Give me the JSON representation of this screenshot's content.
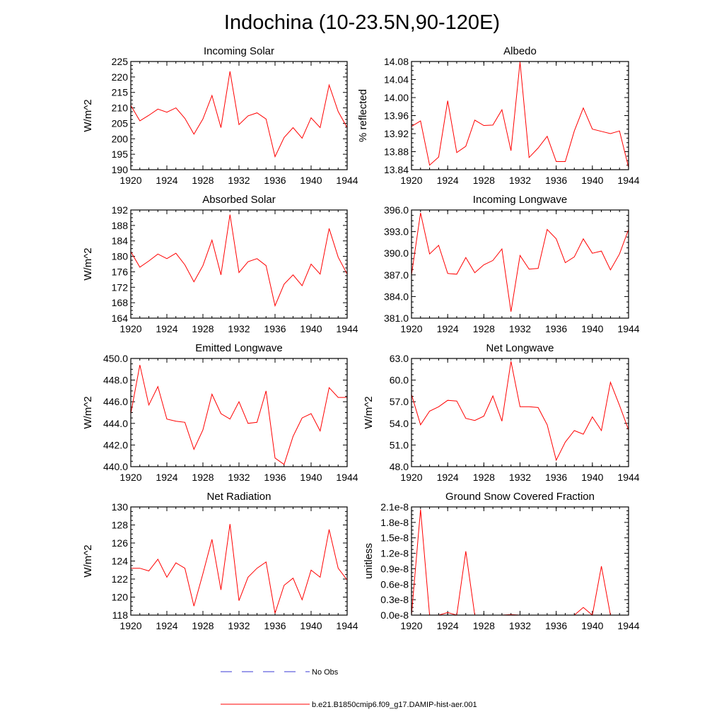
{
  "figure": {
    "title": "Indochina (10-23.5N,90-120E)",
    "line_color": "#ff0000",
    "obs_color": "#3a3ad6"
  },
  "legend": {
    "obs_label": "No Obs",
    "model_label": "b.e21.B1850cmip6.f09_g17.DAMIP-hist-aer.001"
  },
  "chart_data": [
    {
      "type": "line",
      "title": "Incoming Solar",
      "ylabel": "W/m^2",
      "ylabel_side": "left",
      "xlim": [
        1920,
        1944
      ],
      "ylim": [
        190,
        225
      ],
      "xticks": [
        "1920",
        "1924",
        "1928",
        "1932",
        "1936",
        "1940",
        "1944"
      ],
      "yticks": [
        "190",
        "195",
        "200",
        "205",
        "210",
        "215",
        "220",
        "225"
      ],
      "x": [
        1920,
        1921,
        1922,
        1923,
        1924,
        1925,
        1926,
        1927,
        1928,
        1929,
        1930,
        1931,
        1932,
        1933,
        1934,
        1935,
        1936,
        1937,
        1938,
        1939,
        1940,
        1941,
        1942,
        1943,
        1944
      ],
      "values": [
        210.8,
        205.8,
        207.6,
        209.6,
        208.6,
        210.0,
        206.6,
        201.5,
        206.4,
        214.0,
        203.6,
        221.8,
        204.6,
        207.4,
        208.4,
        206.4,
        194.2,
        200.4,
        203.6,
        200.2,
        206.8,
        203.6,
        217.4,
        208.8,
        203.6
      ]
    },
    {
      "type": "line",
      "title": "Albedo",
      "ylabel": "% reflected",
      "ylabel_side": "right",
      "xlim": [
        1920,
        1944
      ],
      "ylim": [
        13.84,
        14.08
      ],
      "xticks": [
        "1920",
        "1924",
        "1928",
        "1932",
        "1936",
        "1940",
        "1944"
      ],
      "yticks": [
        "13.84",
        "13.88",
        "13.92",
        "13.96",
        "14.00",
        "14.04",
        "14.08"
      ],
      "x": [
        1920,
        1921,
        1922,
        1923,
        1924,
        1925,
        1926,
        1927,
        1928,
        1929,
        1930,
        1931,
        1932,
        1933,
        1934,
        1935,
        1936,
        1937,
        1938,
        1939,
        1940,
        1941,
        1942,
        1943,
        1944
      ],
      "values": [
        13.936,
        13.948,
        13.85,
        13.868,
        13.993,
        13.878,
        13.892,
        13.95,
        13.938,
        13.939,
        13.973,
        13.882,
        14.079,
        13.867,
        13.888,
        13.914,
        13.858,
        13.858,
        13.926,
        13.977,
        13.93,
        13.925,
        13.92,
        13.926,
        13.845
      ]
    },
    {
      "type": "line",
      "title": "Absorbed Solar",
      "ylabel": "W/m^2",
      "ylabel_side": "left",
      "xlim": [
        1920,
        1944
      ],
      "ylim": [
        164,
        192
      ],
      "xticks": [
        "1920",
        "1924",
        "1928",
        "1932",
        "1936",
        "1940",
        "1944"
      ],
      "yticks": [
        "164",
        "168",
        "172",
        "176",
        "180",
        "184",
        "188",
        "192"
      ],
      "x": [
        1920,
        1921,
        1922,
        1923,
        1924,
        1925,
        1926,
        1927,
        1928,
        1929,
        1930,
        1931,
        1932,
        1933,
        1934,
        1935,
        1936,
        1937,
        1938,
        1939,
        1940,
        1941,
        1942,
        1943,
        1944
      ],
      "values": [
        181.2,
        177.2,
        178.8,
        180.6,
        179.4,
        180.8,
        177.8,
        173.4,
        177.6,
        184.2,
        175.2,
        190.8,
        175.8,
        178.6,
        179.4,
        177.6,
        167.2,
        172.8,
        175.2,
        172.4,
        178.0,
        175.4,
        187.2,
        179.8,
        175.4
      ]
    },
    {
      "type": "line",
      "title": "Incoming Longwave",
      "ylabel": "",
      "ylabel_side": "left",
      "xlim": [
        1920,
        1944
      ],
      "ylim": [
        381.0,
        396.0
      ],
      "xticks": [
        "1920",
        "1924",
        "1928",
        "1932",
        "1936",
        "1940",
        "1944"
      ],
      "yticks": [
        "381.0",
        "384.0",
        "387.0",
        "390.0",
        "393.0",
        "396.0"
      ],
      "x": [
        1920,
        1921,
        1922,
        1923,
        1924,
        1925,
        1926,
        1927,
        1928,
        1929,
        1930,
        1931,
        1932,
        1933,
        1934,
        1935,
        1936,
        1937,
        1938,
        1939,
        1940,
        1941,
        1942,
        1943,
        1944
      ],
      "values": [
        387.0,
        395.6,
        389.9,
        391.1,
        387.2,
        387.1,
        389.4,
        387.3,
        388.4,
        389.0,
        390.6,
        381.9,
        389.7,
        387.8,
        387.9,
        393.3,
        392.0,
        388.7,
        389.5,
        392.0,
        390.0,
        390.3,
        387.7,
        389.9,
        393.3
      ]
    },
    {
      "type": "line",
      "title": "Emitted Longwave",
      "ylabel": "W/m^2",
      "ylabel_side": "left",
      "xlim": [
        1920,
        1944
      ],
      "ylim": [
        440.0,
        450.0
      ],
      "xticks": [
        "1920",
        "1924",
        "1928",
        "1932",
        "1936",
        "1940",
        "1944"
      ],
      "yticks": [
        "440.0",
        "442.0",
        "444.0",
        "446.0",
        "448.0",
        "450.0"
      ],
      "x": [
        1920,
        1921,
        1922,
        1923,
        1924,
        1925,
        1926,
        1927,
        1928,
        1929,
        1930,
        1931,
        1932,
        1933,
        1934,
        1935,
        1936,
        1937,
        1938,
        1939,
        1940,
        1941,
        1942,
        1943,
        1944
      ],
      "values": [
        444.9,
        449.4,
        445.7,
        447.4,
        444.4,
        444.2,
        444.1,
        441.6,
        443.4,
        446.7,
        444.9,
        444.4,
        446.0,
        444.0,
        444.1,
        447.0,
        440.8,
        440.2,
        442.8,
        444.5,
        444.9,
        443.3,
        447.3,
        446.4,
        446.4
      ]
    },
    {
      "type": "line",
      "title": "Net Longwave",
      "ylabel": "W/m^2",
      "ylabel_side": "left",
      "xlim": [
        1920,
        1944
      ],
      "ylim": [
        48.0,
        63.0
      ],
      "xticks": [
        "1920",
        "1924",
        "1928",
        "1932",
        "1936",
        "1940",
        "1944"
      ],
      "yticks": [
        "48.0",
        "51.0",
        "54.0",
        "57.0",
        "60.0",
        "63.0"
      ],
      "x": [
        1920,
        1921,
        1922,
        1923,
        1924,
        1925,
        1926,
        1927,
        1928,
        1929,
        1930,
        1931,
        1932,
        1933,
        1934,
        1935,
        1936,
        1937,
        1938,
        1939,
        1940,
        1941,
        1942,
        1943,
        1944
      ],
      "values": [
        58.0,
        53.8,
        55.7,
        56.3,
        57.2,
        57.1,
        54.7,
        54.4,
        55.0,
        57.8,
        54.3,
        62.6,
        56.3,
        56.3,
        56.2,
        53.8,
        48.9,
        51.4,
        53.0,
        52.5,
        54.9,
        53.0,
        59.7,
        56.5,
        53.1
      ]
    },
    {
      "type": "line",
      "title": "Net Radiation",
      "ylabel": "W/m^2",
      "ylabel_side": "left",
      "xlim": [
        1920,
        1944
      ],
      "ylim": [
        118,
        130
      ],
      "xticks": [
        "1920",
        "1924",
        "1928",
        "1932",
        "1936",
        "1940",
        "1944"
      ],
      "yticks": [
        "118",
        "120",
        "122",
        "124",
        "126",
        "128",
        "130"
      ],
      "x": [
        1920,
        1921,
        1922,
        1923,
        1924,
        1925,
        1926,
        1927,
        1928,
        1929,
        1930,
        1931,
        1932,
        1933,
        1934,
        1935,
        1936,
        1937,
        1938,
        1939,
        1940,
        1941,
        1942,
        1943,
        1944
      ],
      "values": [
        123.2,
        123.2,
        122.9,
        124.2,
        122.2,
        123.8,
        123.2,
        119.0,
        122.6,
        126.4,
        120.8,
        128.1,
        119.6,
        122.2,
        123.2,
        123.9,
        118.2,
        121.3,
        122.1,
        119.7,
        123.0,
        122.2,
        127.5,
        123.2,
        121.9
      ]
    },
    {
      "type": "line",
      "title": "Ground Snow Covered Fraction",
      "ylabel": "unitless",
      "ylabel_side": "left",
      "xlim": [
        1920,
        1944
      ],
      "ylim": [
        0.0,
        2.1e-08
      ],
      "xticks": [
        "1920",
        "1924",
        "1928",
        "1932",
        "1936",
        "1940",
        "1944"
      ],
      "yticks": [
        "0.0e-8",
        "0.3e-8",
        "0.6e-8",
        "0.9e-8",
        "1.2e-8",
        "1.5e-8",
        "1.8e-8",
        "2.1e-8"
      ],
      "x": [
        1920,
        1921,
        1922,
        1923,
        1924,
        1925,
        1926,
        1927,
        1928,
        1929,
        1930,
        1931,
        1932,
        1933,
        1934,
        1935,
        1936,
        1937,
        1938,
        1939,
        1940,
        1941,
        1942,
        1943,
        1944
      ],
      "values": [
        0.0,
        2.05e-08,
        0.0,
        0.0,
        5e-10,
        0.0,
        1.24e-08,
        0.0,
        0.0,
        0.0,
        0.0,
        1e-10,
        0.0,
        0.0,
        0.0,
        0.0,
        0.0,
        0.0,
        0.0,
        1.5e-09,
        0.0,
        9.5e-09,
        0.0,
        0.0,
        0.0
      ]
    }
  ]
}
